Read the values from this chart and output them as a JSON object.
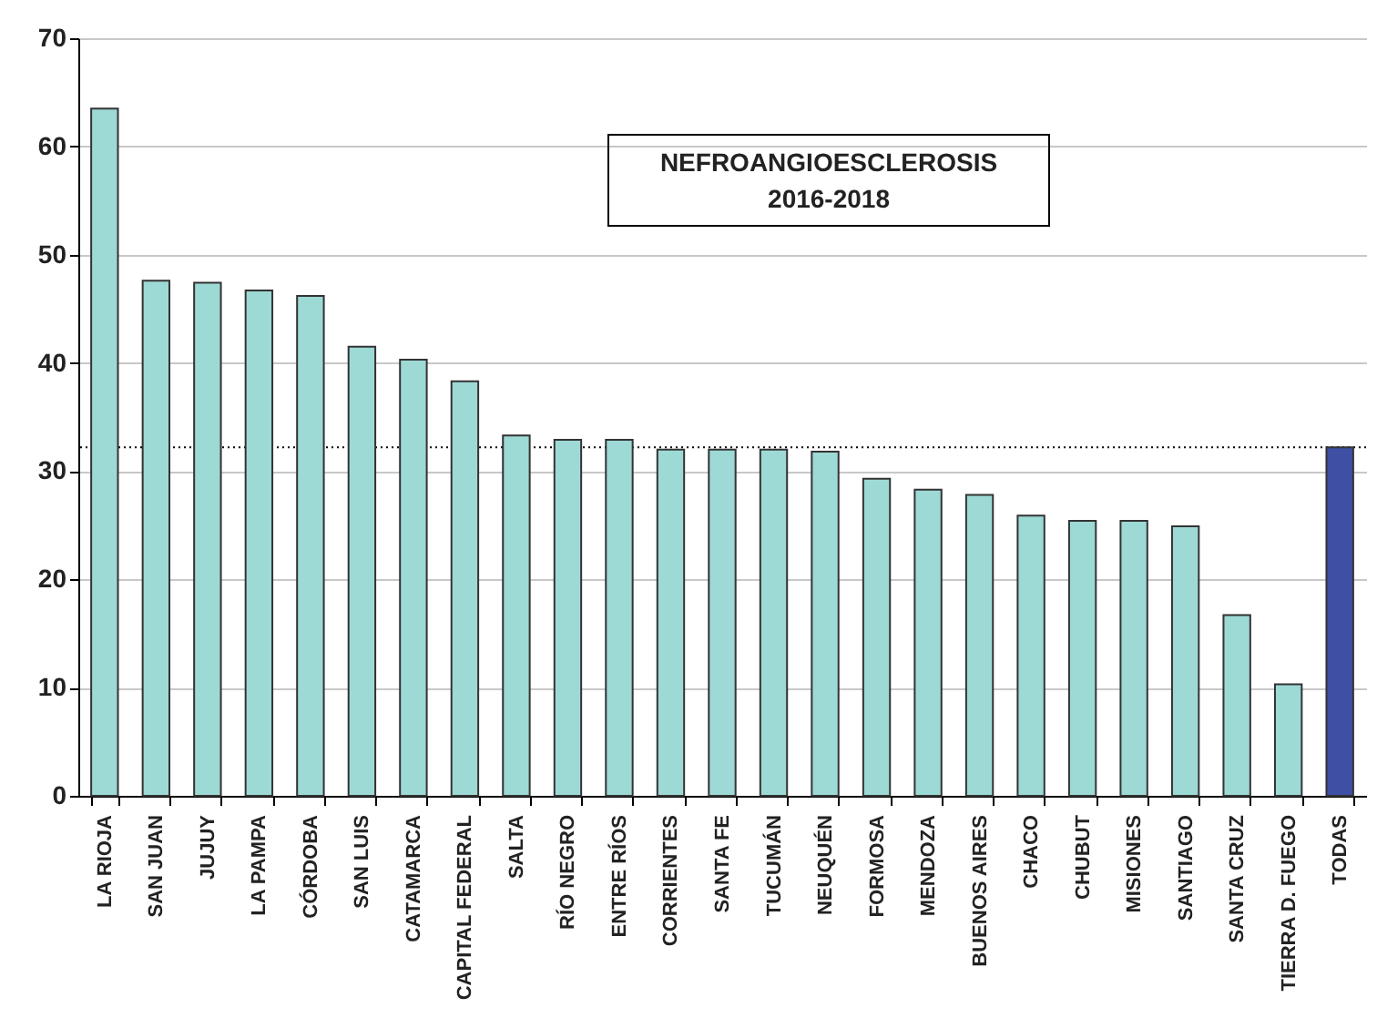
{
  "chart_data": {
    "type": "bar",
    "title": "NEFROANGIOESCLEROSIS",
    "subtitle": "2016-2018",
    "categories": [
      "LA RIOJA",
      "SAN JUAN",
      "JUJUY",
      "LA PAMPA",
      "CÓRDOBA",
      "SAN LUIS",
      "CATAMARCA",
      "CAPITAL FEDERAL",
      "SALTA",
      "RÍO NEGRO",
      "ENTRE RÍOS",
      "CORRIENTES",
      "SANTA FE",
      "TUCUMÁN",
      "NEUQUÉN",
      "FORMOSA",
      "MENDOZA",
      "BUENOS AIRES",
      "CHACO",
      "CHUBUT",
      "MISIONES",
      "SANTIAGO",
      "SANTA CRUZ",
      "TIERRA  D. FUEGO",
      "TODAS"
    ],
    "values": [
      63.5,
      47.6,
      47.4,
      46.7,
      46.2,
      41.5,
      40.3,
      38.3,
      33.3,
      32.9,
      32.9,
      32.0,
      32.0,
      32.0,
      31.8,
      29.3,
      28.3,
      27.8,
      25.9,
      25.4,
      25.4,
      24.9,
      16.7,
      10.3,
      32.2
    ],
    "colors": [
      "#9dd9d5",
      "#9dd9d5",
      "#9dd9d5",
      "#9dd9d5",
      "#9dd9d5",
      "#9dd9d5",
      "#9dd9d5",
      "#9dd9d5",
      "#9dd9d5",
      "#9dd9d5",
      "#9dd9d5",
      "#9dd9d5",
      "#9dd9d5",
      "#9dd9d5",
      "#9dd9d5",
      "#9dd9d5",
      "#9dd9d5",
      "#9dd9d5",
      "#9dd9d5",
      "#9dd9d5",
      "#9dd9d5",
      "#9dd9d5",
      "#9dd9d5",
      "#9dd9d5",
      "#3f4fa3"
    ],
    "ylim": [
      0,
      70
    ],
    "yticks": [
      0,
      10,
      20,
      30,
      40,
      50,
      60,
      70
    ],
    "grid": "y",
    "ref_lines": [
      {
        "axis": "y",
        "value": 32.2,
        "color": "#000000",
        "line_style": "dotted"
      }
    ]
  }
}
